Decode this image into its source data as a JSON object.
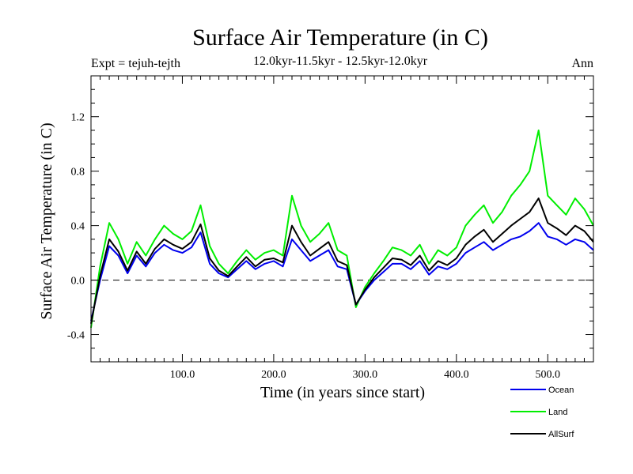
{
  "chart_data": {
    "type": "line",
    "title": "Surface Air Temperature (in C)",
    "subtitle": "12.0kyr-11.5kyr - 12.5kyr-12.0kyr",
    "experiment_label": "Expt = tejuh-tejth",
    "season_label": "Ann",
    "xlabel": "Time (in years since start)",
    "ylabel": "Surface Air Temperature (in C)",
    "xlim": [
      0,
      550
    ],
    "ylim": [
      -0.6,
      1.5
    ],
    "xticks": [
      100,
      200,
      300,
      400,
      500
    ],
    "xtick_labels": [
      "100.0",
      "200.0",
      "300.0",
      "400.0",
      "500.0"
    ],
    "yticks": [
      -0.4,
      0.0,
      0.4,
      0.8,
      1.2
    ],
    "ytick_labels": [
      "-0.4",
      "0.0",
      "0.4",
      "0.8",
      "1.2"
    ],
    "zero_line": "dashed",
    "series": [
      {
        "name": "Land",
        "color": "#00ee00",
        "x": [
          0,
          10,
          20,
          30,
          40,
          50,
          60,
          70,
          80,
          90,
          100,
          110,
          120,
          130,
          140,
          150,
          160,
          170,
          180,
          190,
          200,
          210,
          220,
          230,
          240,
          250,
          260,
          270,
          280,
          290,
          300,
          310,
          320,
          330,
          340,
          350,
          360,
          370,
          380,
          390,
          400,
          410,
          420,
          430,
          440,
          450,
          460,
          470,
          480,
          490,
          500,
          510,
          520,
          530,
          540,
          550
        ],
        "values": [
          -0.35,
          0.1,
          0.42,
          0.3,
          0.12,
          0.28,
          0.18,
          0.3,
          0.4,
          0.34,
          0.3,
          0.36,
          0.55,
          0.25,
          0.12,
          0.05,
          0.14,
          0.22,
          0.15,
          0.2,
          0.22,
          0.18,
          0.62,
          0.4,
          0.28,
          0.34,
          0.42,
          0.22,
          0.18,
          -0.2,
          -0.05,
          0.05,
          0.14,
          0.24,
          0.22,
          0.18,
          0.26,
          0.12,
          0.22,
          0.18,
          0.24,
          0.4,
          0.48,
          0.55,
          0.42,
          0.5,
          0.62,
          0.7,
          0.8,
          1.1,
          0.62,
          0.55,
          0.48,
          0.6,
          0.52,
          0.4
        ]
      },
      {
        "name": "Ocean",
        "color": "#0000ee",
        "x": [
          0,
          10,
          20,
          30,
          40,
          50,
          60,
          70,
          80,
          90,
          100,
          110,
          120,
          130,
          140,
          150,
          160,
          170,
          180,
          190,
          200,
          210,
          220,
          230,
          240,
          250,
          260,
          270,
          280,
          290,
          300,
          310,
          320,
          330,
          340,
          350,
          360,
          370,
          380,
          390,
          400,
          410,
          420,
          430,
          440,
          450,
          460,
          470,
          480,
          490,
          500,
          510,
          520,
          530,
          540,
          550
        ],
        "values": [
          -0.3,
          0.0,
          0.25,
          0.18,
          0.05,
          0.18,
          0.1,
          0.2,
          0.26,
          0.22,
          0.2,
          0.24,
          0.35,
          0.12,
          0.05,
          0.02,
          0.08,
          0.14,
          0.08,
          0.12,
          0.14,
          0.1,
          0.3,
          0.22,
          0.14,
          0.18,
          0.22,
          0.1,
          0.08,
          -0.18,
          -0.08,
          0.0,
          0.06,
          0.12,
          0.12,
          0.08,
          0.14,
          0.04,
          0.1,
          0.08,
          0.12,
          0.2,
          0.24,
          0.28,
          0.22,
          0.26,
          0.3,
          0.32,
          0.36,
          0.42,
          0.32,
          0.3,
          0.26,
          0.3,
          0.28,
          0.22
        ]
      },
      {
        "name": "AllSurf",
        "color": "#000000",
        "x": [
          0,
          10,
          20,
          30,
          40,
          50,
          60,
          70,
          80,
          90,
          100,
          110,
          120,
          130,
          140,
          150,
          160,
          170,
          180,
          190,
          200,
          210,
          220,
          230,
          240,
          250,
          260,
          270,
          280,
          290,
          300,
          310,
          320,
          330,
          340,
          350,
          360,
          370,
          380,
          390,
          400,
          410,
          420,
          430,
          440,
          450,
          460,
          470,
          480,
          490,
          500,
          510,
          520,
          530,
          540,
          550
        ],
        "values": [
          -0.32,
          0.03,
          0.3,
          0.21,
          0.07,
          0.21,
          0.12,
          0.23,
          0.3,
          0.26,
          0.23,
          0.28,
          0.41,
          0.16,
          0.07,
          0.03,
          0.1,
          0.17,
          0.1,
          0.15,
          0.16,
          0.13,
          0.4,
          0.28,
          0.18,
          0.23,
          0.28,
          0.14,
          0.11,
          -0.18,
          -0.07,
          0.02,
          0.09,
          0.16,
          0.15,
          0.11,
          0.18,
          0.07,
          0.14,
          0.11,
          0.16,
          0.26,
          0.32,
          0.37,
          0.28,
          0.34,
          0.4,
          0.45,
          0.5,
          0.6,
          0.42,
          0.38,
          0.33,
          0.4,
          0.36,
          0.28
        ]
      }
    ],
    "legend": "bottom-right"
  }
}
